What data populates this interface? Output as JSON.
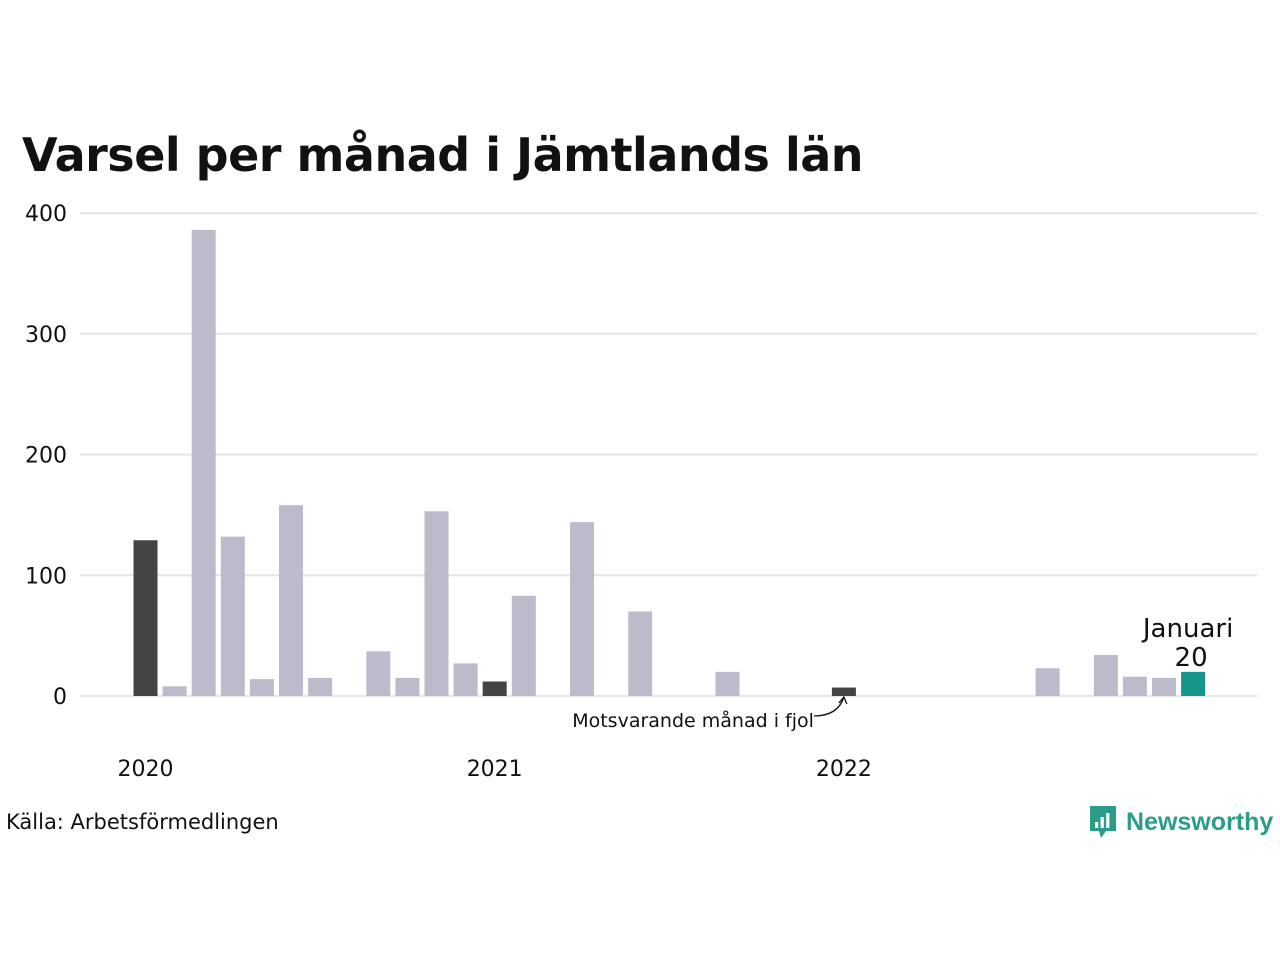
{
  "title": "Varsel per månad i Jämtlands län",
  "source": "Källa: Arbetsförmedlingen",
  "brand": {
    "name": "Newsworthy",
    "icon": "newsworthy-logo-icon",
    "color": "#2a9d8a"
  },
  "colors": {
    "default": "#bcbbcb",
    "same_month": "#444444",
    "highlight": "#16968a",
    "grid": "#e6e6e6"
  },
  "chart_data": {
    "type": "bar",
    "title": "Varsel per månad i Jämtlands län",
    "xlabel": "",
    "ylabel": "",
    "ylim": [
      0,
      400
    ],
    "yticks": [
      0,
      100,
      200,
      300,
      400
    ],
    "year_labels": [
      {
        "label": "2020",
        "index": 0
      },
      {
        "label": "2021",
        "index": 12
      },
      {
        "label": "2022",
        "index": 24
      }
    ],
    "categories": [
      "2020-01",
      "2020-02",
      "2020-03",
      "2020-04",
      "2020-05",
      "2020-06",
      "2020-07",
      "2020-08",
      "2020-09",
      "2020-10",
      "2020-11",
      "2020-12",
      "2021-01",
      "2021-02",
      "2021-03",
      "2021-04",
      "2021-05",
      "2021-06",
      "2021-07",
      "2021-08",
      "2021-09",
      "2021-10",
      "2021-11",
      "2021-12",
      "2022-01",
      "2022-02",
      "2022-03",
      "2022-04",
      "2022-05",
      "2022-06",
      "2022-07",
      "2022-08",
      "2022-09",
      "2022-10",
      "2022-11",
      "2022-12",
      "2023-01"
    ],
    "values": [
      129,
      8,
      386,
      132,
      14,
      158,
      15,
      0,
      37,
      15,
      153,
      27,
      12,
      83,
      0,
      144,
      0,
      70,
      0,
      0,
      20,
      0,
      0,
      0,
      7,
      0,
      0,
      0,
      0,
      0,
      0,
      23,
      0,
      34,
      16,
      15,
      20
    ],
    "emphasis": {
      "same_month_indices": [
        0,
        12,
        24
      ],
      "highlight_index": 36
    },
    "annotations": {
      "same_month_label": "Motsvarande månad i fjol",
      "highlight_month": "Januari",
      "highlight_value": "20"
    },
    "grid": true
  }
}
